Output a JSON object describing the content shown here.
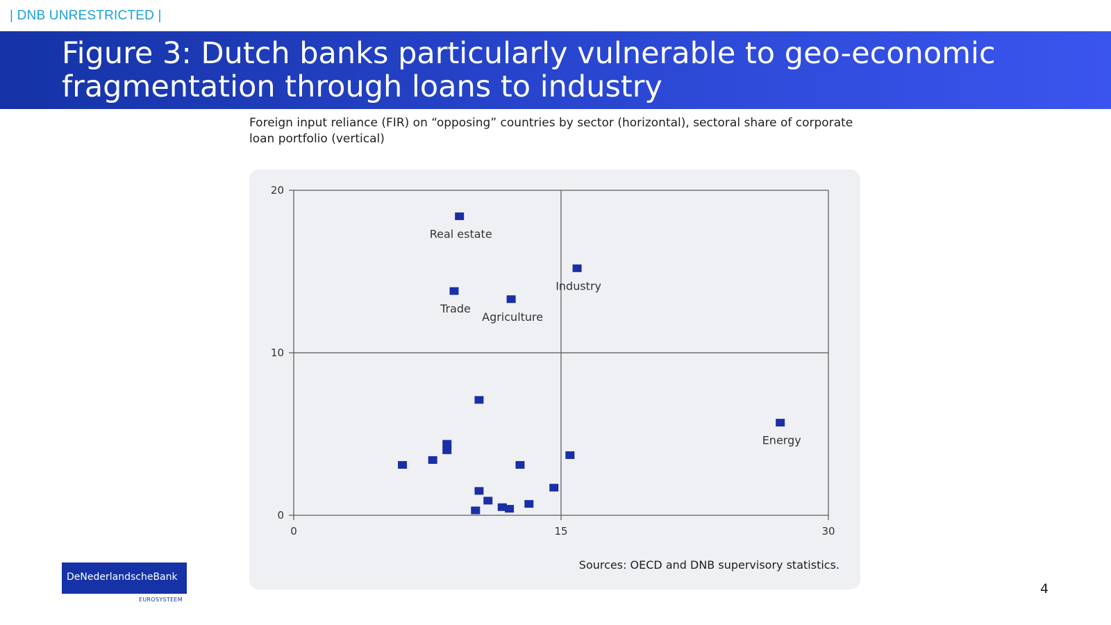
{
  "header": {
    "classification": "| DNB UNRESTRICTED |",
    "title": "Figure 3: Dutch banks particularly vulnerable to geo-economic fragmentation through loans to industry"
  },
  "subtitle": "Foreign input reliance (FIR) on “opposing” countries by sector (horizontal), sectoral share of corporate loan portfolio (vertical)",
  "source": "Sources: OECD and DNB supervisory statistics.",
  "logo": {
    "name": "DeNederlandscheBank",
    "sub": "EUROSYSTEEM"
  },
  "page_number": "4",
  "colors": {
    "marker": "#1a2ea6",
    "axis": "#555555",
    "panel": "#eff0f4",
    "brand": "#1533a6"
  },
  "chart_data": {
    "type": "scatter",
    "title": "",
    "xlabel": "",
    "ylabel": "",
    "xlim": [
      0,
      30
    ],
    "ylim": [
      0,
      20
    ],
    "xticks": [
      0,
      15,
      30
    ],
    "yticks": [
      0,
      10,
      20
    ],
    "reference_lines": {
      "x": 15,
      "y": 10
    },
    "grid": false,
    "points": [
      {
        "x": 9.3,
        "y": 18.4,
        "label": "Real estate"
      },
      {
        "x": 15.9,
        "y": 15.2,
        "label": "Industry"
      },
      {
        "x": 9.0,
        "y": 13.8,
        "label": "Trade"
      },
      {
        "x": 12.2,
        "y": 13.3,
        "label": "Agriculture"
      },
      {
        "x": 27.3,
        "y": 5.7,
        "label": "Energy"
      },
      {
        "x": 10.4,
        "y": 7.1,
        "label": ""
      },
      {
        "x": 8.6,
        "y": 4.4,
        "label": ""
      },
      {
        "x": 8.6,
        "y": 4.0,
        "label": ""
      },
      {
        "x": 15.5,
        "y": 3.7,
        "label": ""
      },
      {
        "x": 7.8,
        "y": 3.4,
        "label": ""
      },
      {
        "x": 6.1,
        "y": 3.1,
        "label": ""
      },
      {
        "x": 12.7,
        "y": 3.1,
        "label": ""
      },
      {
        "x": 14.6,
        "y": 1.7,
        "label": ""
      },
      {
        "x": 10.4,
        "y": 1.5,
        "label": ""
      },
      {
        "x": 10.9,
        "y": 0.9,
        "label": ""
      },
      {
        "x": 13.2,
        "y": 0.7,
        "label": ""
      },
      {
        "x": 11.7,
        "y": 0.5,
        "label": ""
      },
      {
        "x": 12.1,
        "y": 0.4,
        "label": ""
      },
      {
        "x": 10.2,
        "y": 0.3,
        "label": ""
      }
    ]
  }
}
